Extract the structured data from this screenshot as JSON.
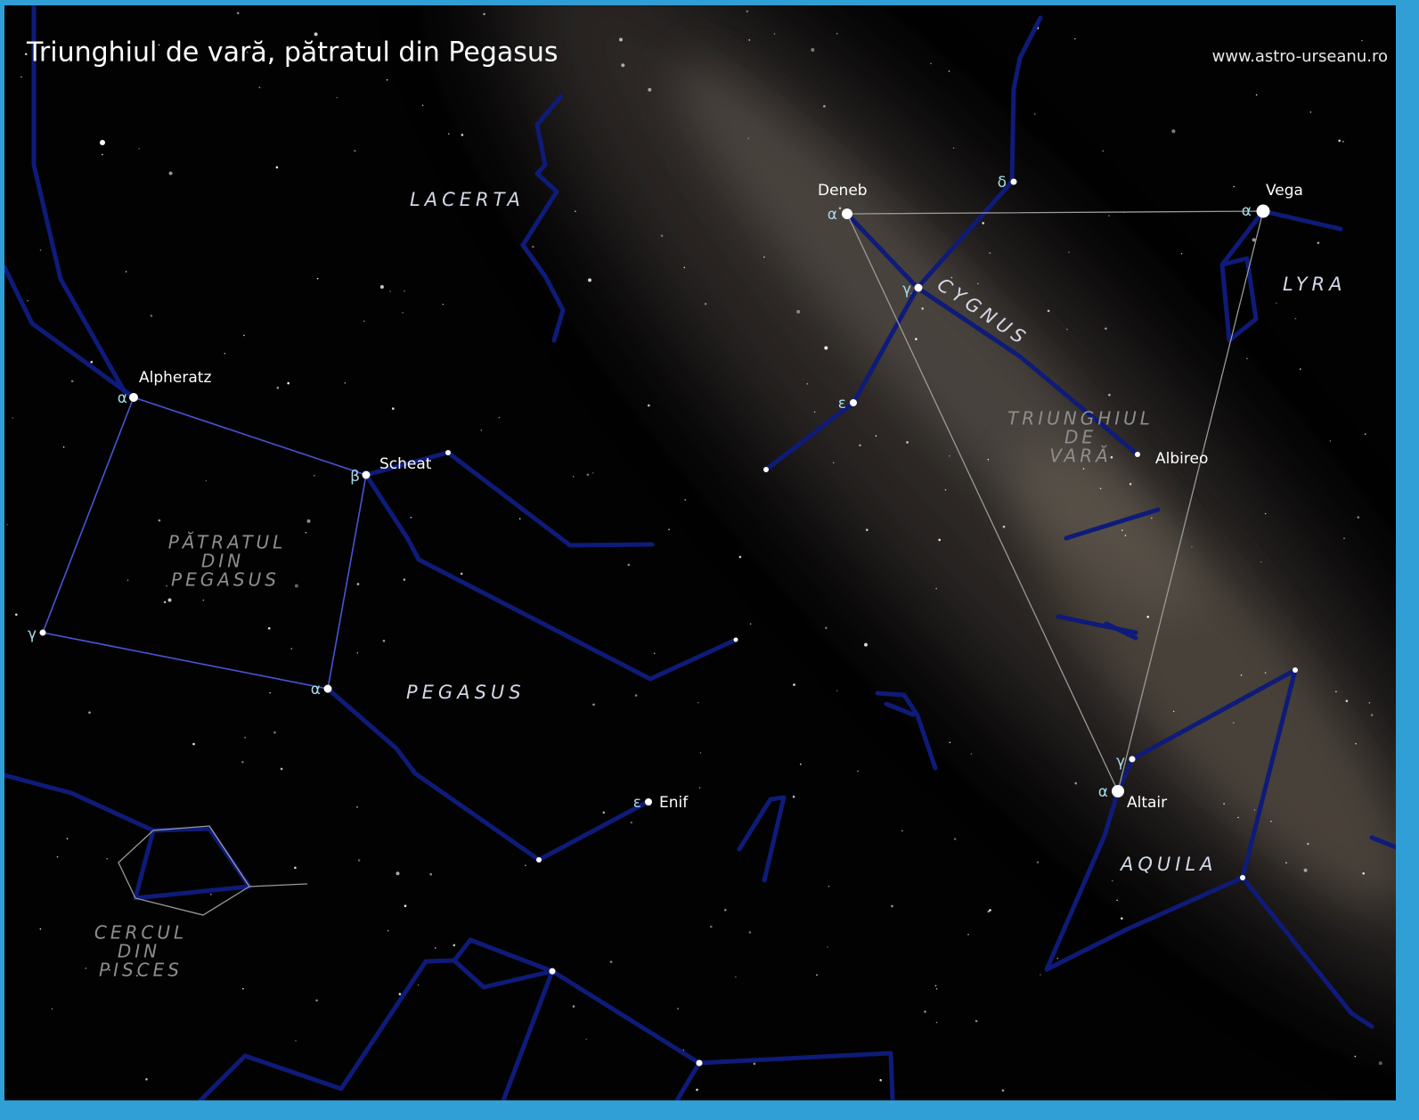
{
  "header": {
    "title": "Triunghiul de vară, pătratul din Pegasus",
    "website": "www.astro-urseanu.ro"
  },
  "constellations": [
    "LACERTA",
    "PEGASUS",
    "CYGNUS",
    "LYRA",
    "AQUILA"
  ],
  "asterisms": [
    {
      "lines": [
        "PĂTRATUL",
        "DIN",
        "PEGASUS"
      ]
    },
    {
      "lines": [
        "TRIUNGHIUL",
        "DE",
        "VARĂ"
      ]
    },
    {
      "lines": [
        "CERCUL",
        "DIN",
        "PISCES"
      ]
    }
  ],
  "stars": [
    {
      "name": "Alpheratz",
      "letter": "α"
    },
    {
      "name": "Scheat",
      "letter": "β"
    },
    {
      "letter": "γ"
    },
    {
      "letter": "α"
    },
    {
      "name": "Enif",
      "letter": "ε"
    },
    {
      "name": "Deneb",
      "letter": "α"
    },
    {
      "letter": "γ"
    },
    {
      "letter": "ε"
    },
    {
      "letter": "δ"
    },
    {
      "name": "Vega",
      "letter": "α"
    },
    {
      "name": "Albireo"
    },
    {
      "name": "Altair",
      "letter": "α"
    },
    {
      "letter": "γ"
    }
  ]
}
